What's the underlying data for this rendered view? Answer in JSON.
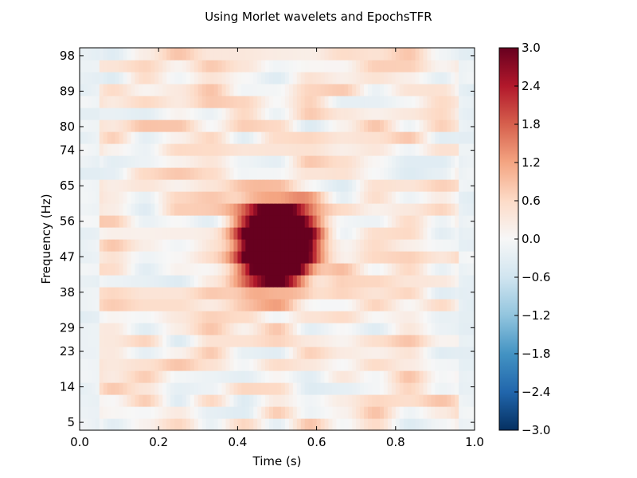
{
  "chart_data": {
    "type": "heatmap",
    "title": "Using Morlet wavelets and EpochsTFR",
    "xlabel": "Time (s)",
    "ylabel": "Frequency (Hz)",
    "xlim": [
      0.0,
      1.0
    ],
    "x_ticks": [
      "0.0",
      "0.2",
      "0.4",
      "0.6",
      "0.8",
      "1.0"
    ],
    "y_ticks": [
      "5",
      "14",
      "23",
      "29",
      "38",
      "47",
      "56",
      "65",
      "74",
      "80",
      "89",
      "98"
    ],
    "colormap": "RdBu_r",
    "vmin": -3.0,
    "vmax": 3.0,
    "colorbar_ticks": [
      "3.0",
      "2.4",
      "1.8",
      "1.2",
      "0.6",
      "0.0",
      "−0.6",
      "−1.2",
      "−1.8",
      "−2.4",
      "−3.0"
    ],
    "colors": {
      "max": "#67001f",
      "mid": "#f7f7f7",
      "min": "#053061"
    },
    "pattern": {
      "description": "Power around 0.4–0.6 s and 40–60 Hz; faint activity elsewhere",
      "blob_center": {
        "time": 0.5,
        "freq": 50
      },
      "blob_peak": 3.0
    },
    "legend": "colorbar-right",
    "grid": false
  }
}
